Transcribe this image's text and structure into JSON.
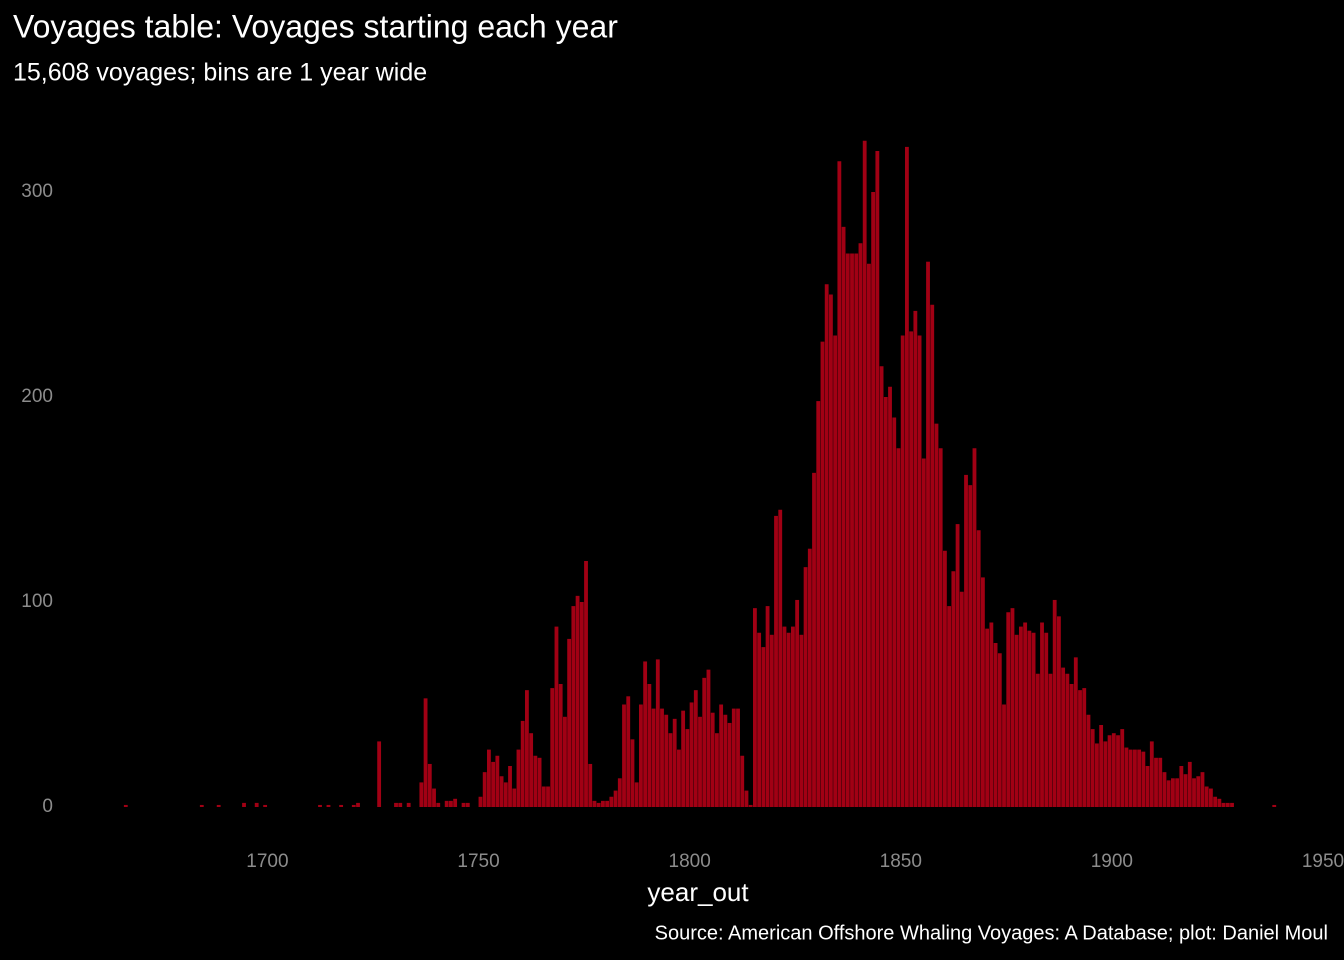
{
  "chart_data": {
    "type": "histogram",
    "title": "Voyages table: Voyages starting each year",
    "subtitle": "15,608 voyages; bins are 1 year wide",
    "x_label": "year_out",
    "caption": "Source: American Offshore Whaling Voyages: A Database; plot: Daniel Moul",
    "color": "#a10014",
    "xlim": [
      1662,
      1950
    ],
    "xticks": [
      1700,
      1750,
      1800,
      1850,
      1900,
      1950
    ],
    "ylim": [
      0,
      330
    ],
    "yticks": [
      0,
      100,
      200,
      300
    ],
    "grid": false,
    "bins": [
      1666,
      1667,
      1668,
      1669,
      1670,
      1671,
      1672,
      1673,
      1674,
      1675,
      1676,
      1677,
      1678,
      1679,
      1680,
      1681,
      1682,
      1683,
      1684,
      1685,
      1686,
      1687,
      1688,
      1689,
      1690,
      1691,
      1692,
      1693,
      1694,
      1695,
      1696,
      1697,
      1698,
      1699,
      1700,
      1701,
      1702,
      1703,
      1704,
      1705,
      1706,
      1707,
      1708,
      1709,
      1710,
      1711,
      1712,
      1713,
      1714,
      1715,
      1716,
      1717,
      1718,
      1719,
      1720,
      1721,
      1722,
      1723,
      1724,
      1725,
      1726,
      1727,
      1728,
      1729,
      1730,
      1731,
      1732,
      1733,
      1734,
      1735,
      1736,
      1737,
      1738,
      1739,
      1740,
      1741,
      1742,
      1743,
      1744,
      1745,
      1746,
      1747,
      1748,
      1749,
      1750,
      1751,
      1752,
      1753,
      1754,
      1755,
      1756,
      1757,
      1758,
      1759,
      1760,
      1761,
      1762,
      1763,
      1764,
      1765,
      1766,
      1767,
      1768,
      1769,
      1770,
      1771,
      1772,
      1773,
      1774,
      1775,
      1776,
      1777,
      1778,
      1779,
      1780,
      1781,
      1782,
      1783,
      1784,
      1785,
      1786,
      1787,
      1788,
      1789,
      1790,
      1791,
      1792,
      1793,
      1794,
      1795,
      1796,
      1797,
      1798,
      1799,
      1800,
      1801,
      1802,
      1803,
      1804,
      1805,
      1806,
      1807,
      1808,
      1809,
      1810,
      1811,
      1812,
      1813,
      1814,
      1815,
      1816,
      1817,
      1818,
      1819,
      1820,
      1821,
      1822,
      1823,
      1824,
      1825,
      1826,
      1827,
      1828,
      1829,
      1830,
      1831,
      1832,
      1833,
      1834,
      1835,
      1836,
      1837,
      1838,
      1839,
      1840,
      1841,
      1842,
      1843,
      1844,
      1845,
      1846,
      1847,
      1848,
      1849,
      1850,
      1851,
      1852,
      1853,
      1854,
      1855,
      1856,
      1857,
      1858,
      1859,
      1860,
      1861,
      1862,
      1863,
      1864,
      1865,
      1866,
      1867,
      1868,
      1869,
      1870,
      1871,
      1872,
      1873,
      1874,
      1875,
      1876,
      1877,
      1878,
      1879,
      1880,
      1881,
      1882,
      1883,
      1884,
      1885,
      1886,
      1887,
      1888,
      1889,
      1890,
      1891,
      1892,
      1893,
      1894,
      1895,
      1896,
      1897,
      1898,
      1899,
      1900,
      1901,
      1902,
      1903,
      1904,
      1905,
      1906,
      1907,
      1908,
      1909,
      1910,
      1911,
      1912,
      1913,
      1914,
      1915,
      1916,
      1917,
      1918,
      1919,
      1920,
      1921,
      1922,
      1923,
      1924,
      1925,
      1926,
      1927,
      1928,
      1929,
      1930,
      1931,
      1932,
      1933,
      1934,
      1935,
      1936,
      1937,
      1938,
      1939
    ],
    "values": [
      1,
      0,
      0,
      0,
      0,
      0,
      0,
      0,
      0,
      0,
      0,
      0,
      0,
      0,
      0,
      0,
      0,
      0,
      1,
      0,
      0,
      0,
      1,
      0,
      0,
      0,
      0,
      0,
      2,
      0,
      0,
      2,
      0,
      1,
      0,
      0,
      0,
      0,
      0,
      0,
      0,
      0,
      0,
      0,
      0,
      0,
      1,
      0,
      1,
      0,
      0,
      1,
      0,
      0,
      1,
      2,
      0,
      0,
      0,
      0,
      32,
      0,
      0,
      0,
      2,
      2,
      0,
      2,
      0,
      0,
      12,
      53,
      21,
      9,
      2,
      0,
      3,
      3,
      4,
      0,
      2,
      2,
      0,
      0,
      5,
      17,
      28,
      22,
      25,
      15,
      12,
      20,
      9,
      28,
      42,
      57,
      36,
      25,
      24,
      10,
      10,
      58,
      88,
      60,
      44,
      82,
      98,
      103,
      100,
      120,
      21,
      3,
      2,
      3,
      3,
      5,
      8,
      14,
      50,
      54,
      33,
      12,
      50,
      71,
      60,
      48,
      72,
      48,
      45,
      36,
      43,
      28,
      47,
      38,
      51,
      57,
      44,
      63,
      67,
      46,
      36,
      50,
      45,
      41,
      48,
      48,
      25,
      8,
      1,
      97,
      85,
      78,
      98,
      84,
      142,
      145,
      88,
      85,
      88,
      101,
      84,
      117,
      126,
      163,
      198,
      227,
      255,
      250,
      230,
      315,
      283,
      270,
      270,
      270,
      275,
      325,
      265,
      300,
      320,
      215,
      200,
      205,
      190,
      175,
      230,
      322,
      232,
      242,
      230,
      170,
      266,
      245,
      187,
      175,
      125,
      98,
      115,
      138,
      105,
      162,
      157,
      175,
      135,
      112,
      87,
      90,
      80,
      75,
      50,
      95,
      97,
      84,
      88,
      90,
      86,
      85,
      65,
      90,
      85,
      65,
      101,
      93,
      68,
      65,
      60,
      73,
      57,
      58,
      45,
      38,
      31,
      40,
      32,
      35,
      36,
      35,
      38,
      29,
      28,
      28,
      28,
      27,
      20,
      32,
      24,
      24,
      17,
      13,
      14,
      14,
      20,
      16,
      22,
      14,
      15,
      17,
      10,
      9,
      5,
      4,
      2,
      2,
      2,
      0,
      0,
      0,
      0,
      0,
      0,
      0,
      0,
      0,
      1
    ]
  }
}
